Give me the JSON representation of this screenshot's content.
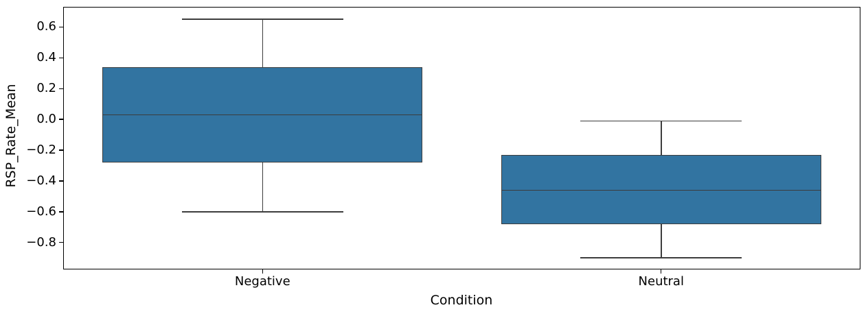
{
  "figure": {
    "background": "#ffffff"
  },
  "chart_data": {
    "type": "boxplot",
    "title": "",
    "xlabel": "Condition",
    "ylabel": "RSP_Rate_Mean",
    "categories": [
      "Negative",
      "Neutral"
    ],
    "series": [
      {
        "category": "Negative",
        "whisker_low": -0.6,
        "q1": -0.28,
        "median": 0.03,
        "q3": 0.34,
        "whisker_high": 0.65
      },
      {
        "category": "Neutral",
        "whisker_low": -0.9,
        "q1": -0.68,
        "median": -0.46,
        "q3": -0.23,
        "whisker_high": -0.01
      }
    ],
    "yticks": [
      0.6,
      0.4,
      0.2,
      0.0,
      -0.2,
      -0.4,
      -0.6,
      -0.8
    ],
    "ytick_labels": [
      "0.6",
      "0.4",
      "0.2",
      "0.0",
      "−0.2",
      "−0.4",
      "−0.6",
      "−0.8"
    ],
    "ylim": [
      -0.975,
      0.731
    ],
    "grid": false,
    "legend": null,
    "colors": {
      "box_fill": "#3274a1",
      "box_edge": "#3c3c3c",
      "whisker": "#3c3c3c",
      "median": "#3c3c3c",
      "spine": "#000000",
      "text": "#000000"
    }
  }
}
